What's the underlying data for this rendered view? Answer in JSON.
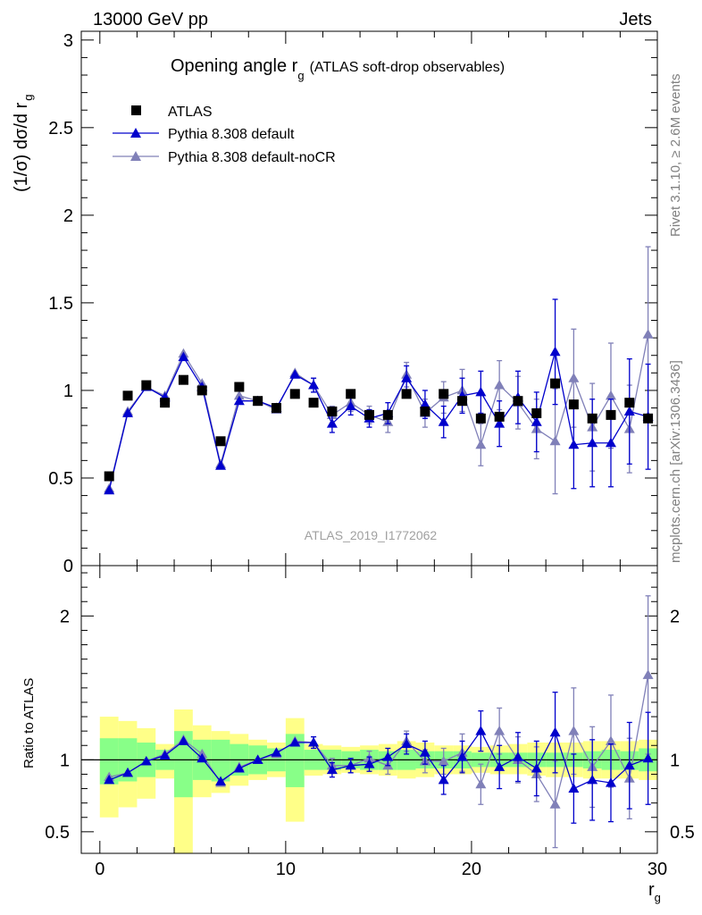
{
  "header": {
    "left": "13000 GeV pp",
    "right": "Jets"
  },
  "side_text": {
    "rivet": "Rivet 3.1.10, ≥ 2.6M events",
    "mcplots": "mcplots.cern.ch [arXiv:1306.3436]"
  },
  "chart_data": {
    "type": "scatter",
    "title_main": "Opening angle r",
    "title_sub": "g",
    "title_extra": "(ATLAS soft-drop observables)",
    "analysis_label": "ATLAS_2019_I1772062",
    "xlabel": "r",
    "xlabel_sub": "g",
    "ylabel_main": "(1/σ) dσ/d r",
    "ylabel_sub": "g",
    "ylabel_ratio": "Ratio to ATLAS",
    "xlim": [
      -1,
      30
    ],
    "ylim_main": [
      0,
      3.05
    ],
    "ylim_ratio": [
      0.35,
      2.35
    ],
    "x_ticks": [
      "0",
      "10",
      "20",
      "30"
    ],
    "y_ticks_main": [
      "0",
      "0.5",
      "1",
      "1.5",
      "2",
      "2.5",
      "3"
    ],
    "y_ticks_ratio": [
      "0.5",
      "1",
      "2"
    ],
    "x": [
      0.5,
      1.5,
      2.5,
      3.5,
      4.5,
      5.5,
      6.5,
      7.5,
      8.5,
      9.5,
      10.5,
      11.5,
      12.5,
      13.5,
      14.5,
      15.5,
      16.5,
      17.5,
      18.5,
      19.5,
      20.5,
      21.5,
      22.5,
      23.5,
      24.5,
      25.5,
      26.5,
      27.5,
      28.5,
      29.5
    ],
    "legend": {
      "atlas": "ATLAS",
      "default": "Pythia 8.308 default",
      "nocr": "Pythia 8.308 default-noCR"
    },
    "series": [
      {
        "key": "atlas",
        "name": "ATLAS",
        "color": "#000000",
        "values": [
          0.51,
          0.97,
          1.03,
          0.93,
          1.06,
          1.0,
          0.71,
          1.02,
          0.94,
          0.9,
          0.98,
          0.93,
          0.88,
          0.98,
          0.86,
          0.86,
          0.98,
          0.88,
          0.98,
          0.94,
          0.84,
          0.85,
          0.94,
          0.87,
          1.04,
          0.92,
          0.84,
          0.86,
          0.93,
          0.84
        ]
      },
      {
        "key": "default",
        "name": "Pythia 8.308 default",
        "color": "#0000cc",
        "values": [
          0.43,
          0.87,
          1.02,
          0.96,
          1.19,
          1.02,
          0.57,
          0.94,
          0.94,
          0.9,
          1.09,
          1.03,
          0.81,
          0.91,
          0.84,
          0.87,
          1.07,
          0.92,
          0.82,
          0.97,
          0.99,
          0.81,
          0.96,
          0.82,
          1.22,
          0.69,
          0.7,
          0.7,
          0.88,
          0.85
        ],
        "errors": [
          0.02,
          0.02,
          0.02,
          0.02,
          0.03,
          0.03,
          0.02,
          0.03,
          0.03,
          0.03,
          0.03,
          0.04,
          0.05,
          0.05,
          0.05,
          0.06,
          0.07,
          0.08,
          0.09,
          0.1,
          0.12,
          0.13,
          0.15,
          0.17,
          0.3,
          0.25,
          0.25,
          0.25,
          0.3,
          0.3
        ],
        "ratio": [
          0.86,
          0.91,
          0.99,
          1.03,
          1.13,
          1.01,
          0.85,
          0.94,
          1.0,
          1.05,
          1.12,
          1.12,
          0.93,
          0.96,
          0.97,
          1.02,
          1.11,
          1.05,
          0.86,
          1.02,
          1.2,
          0.95,
          1.02,
          0.94,
          1.19,
          0.8,
          0.86,
          0.84,
          0.96,
          1.01
        ],
        "ratio_err": [
          0.02,
          0.02,
          0.02,
          0.02,
          0.03,
          0.03,
          0.03,
          0.03,
          0.03,
          0.03,
          0.03,
          0.04,
          0.05,
          0.05,
          0.05,
          0.06,
          0.07,
          0.08,
          0.1,
          0.11,
          0.14,
          0.15,
          0.17,
          0.19,
          0.28,
          0.24,
          0.28,
          0.27,
          0.3,
          0.32
        ]
      },
      {
        "key": "nocr",
        "name": "Pythia 8.308 default-noCR",
        "color": "#8080b8",
        "values": [
          0.44,
          0.88,
          1.02,
          0.97,
          1.21,
          1.04,
          0.58,
          0.97,
          0.94,
          0.89,
          1.1,
          1.03,
          0.86,
          0.93,
          0.86,
          0.82,
          1.09,
          0.87,
          0.96,
          1.0,
          0.69,
          1.03,
          0.93,
          0.78,
          0.71,
          1.07,
          0.79,
          0.97,
          0.78,
          1.32
        ],
        "errors": [
          0.02,
          0.02,
          0.02,
          0.02,
          0.03,
          0.03,
          0.02,
          0.03,
          0.03,
          0.03,
          0.03,
          0.04,
          0.05,
          0.05,
          0.05,
          0.06,
          0.07,
          0.08,
          0.09,
          0.12,
          0.12,
          0.14,
          0.15,
          0.17,
          0.3,
          0.28,
          0.25,
          0.3,
          0.25,
          0.5
        ],
        "ratio": [
          0.88,
          0.91,
          0.99,
          1.04,
          1.14,
          1.04,
          0.84,
          0.95,
          1.0,
          1.04,
          1.13,
          1.12,
          0.96,
          0.96,
          1.01,
          0.96,
          1.13,
          0.99,
          0.99,
          1.05,
          0.83,
          1.2,
          1.0,
          0.9,
          0.69,
          1.2,
          0.95,
          1.13,
          0.87,
          1.59
        ],
        "ratio_err": [
          0.02,
          0.02,
          0.02,
          0.02,
          0.03,
          0.03,
          0.03,
          0.03,
          0.03,
          0.03,
          0.03,
          0.04,
          0.05,
          0.05,
          0.05,
          0.06,
          0.07,
          0.08,
          0.09,
          0.13,
          0.14,
          0.16,
          0.16,
          0.19,
          0.3,
          0.3,
          0.28,
          0.32,
          0.28,
          0.55
        ]
      }
    ],
    "ratio_bands": {
      "stat_color": "#88ff88",
      "total_color": "#ffff88",
      "stat": [
        [
          0.83,
          1.15
        ],
        [
          0.85,
          1.15
        ],
        [
          0.88,
          1.12
        ],
        [
          0.93,
          1.07
        ],
        [
          0.74,
          1.2
        ],
        [
          0.86,
          1.14
        ],
        [
          0.85,
          1.14
        ],
        [
          0.89,
          1.11
        ],
        [
          0.9,
          1.1
        ],
        [
          0.92,
          1.08
        ],
        [
          0.81,
          1.18
        ],
        [
          0.93,
          1.07
        ],
        [
          0.93,
          1.07
        ],
        [
          0.94,
          1.06
        ],
        [
          0.93,
          1.07
        ],
        [
          0.93,
          1.06
        ],
        [
          0.93,
          1.07
        ],
        [
          0.94,
          1.06
        ],
        [
          0.94,
          1.06
        ],
        [
          0.94,
          1.06
        ],
        [
          0.95,
          1.05
        ],
        [
          0.95,
          1.05
        ],
        [
          0.95,
          1.05
        ],
        [
          0.95,
          1.05
        ],
        [
          0.95,
          1.05
        ],
        [
          0.95,
          1.05
        ],
        [
          0.94,
          1.06
        ],
        [
          0.93,
          1.07
        ],
        [
          0.93,
          1.06
        ],
        [
          0.92,
          1.08
        ]
      ],
      "total": [
        [
          0.6,
          1.3
        ],
        [
          0.67,
          1.27
        ],
        [
          0.73,
          1.22
        ],
        [
          0.87,
          1.11
        ],
        [
          0.35,
          1.35
        ],
        [
          0.74,
          1.24
        ],
        [
          0.77,
          1.2
        ],
        [
          0.82,
          1.18
        ],
        [
          0.86,
          1.14
        ],
        [
          0.88,
          1.12
        ],
        [
          0.57,
          1.29
        ],
        [
          0.89,
          1.11
        ],
        [
          0.9,
          1.1
        ],
        [
          0.91,
          1.09
        ],
        [
          0.9,
          1.1
        ],
        [
          0.89,
          1.11
        ],
        [
          0.87,
          1.13
        ],
        [
          0.88,
          1.12
        ],
        [
          0.9,
          1.1
        ],
        [
          0.9,
          1.1
        ],
        [
          0.91,
          1.09
        ],
        [
          0.9,
          1.1
        ],
        [
          0.9,
          1.11
        ],
        [
          0.89,
          1.12
        ],
        [
          0.88,
          1.12
        ],
        [
          0.88,
          1.12
        ],
        [
          0.87,
          1.13
        ],
        [
          0.87,
          1.13
        ],
        [
          0.87,
          1.13
        ],
        [
          0.86,
          1.14
        ]
      ]
    }
  }
}
